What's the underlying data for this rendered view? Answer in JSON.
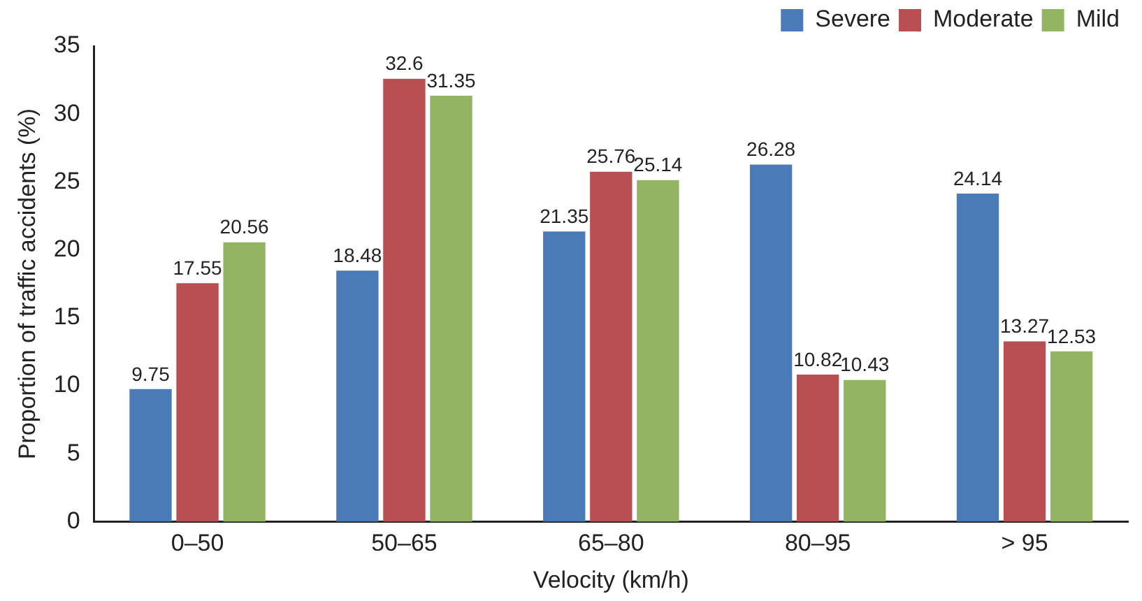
{
  "chart_data": {
    "type": "bar",
    "xlabel": "Velocity (km/h)",
    "ylabel": "Proportion of traffic accidents (%)",
    "categories": [
      "0–50",
      "50–65",
      "65–80",
      "80–95",
      "> 95"
    ],
    "series": [
      {
        "name": "Severe",
        "color": "#4a7bb7",
        "values": [
          9.75,
          18.48,
          21.35,
          26.28,
          24.14
        ]
      },
      {
        "name": "Moderate",
        "color": "#b84f53",
        "values": [
          17.55,
          32.6,
          25.76,
          10.82,
          13.27
        ]
      },
      {
        "name": "Mild",
        "color": "#93b463",
        "values": [
          20.56,
          31.35,
          25.14,
          10.43,
          12.53
        ]
      }
    ],
    "ylim": [
      0,
      35
    ],
    "yticks": [
      0,
      5,
      10,
      15,
      20,
      25,
      30,
      35
    ],
    "grid": false,
    "legend": "top right",
    "data_labels": true
  }
}
